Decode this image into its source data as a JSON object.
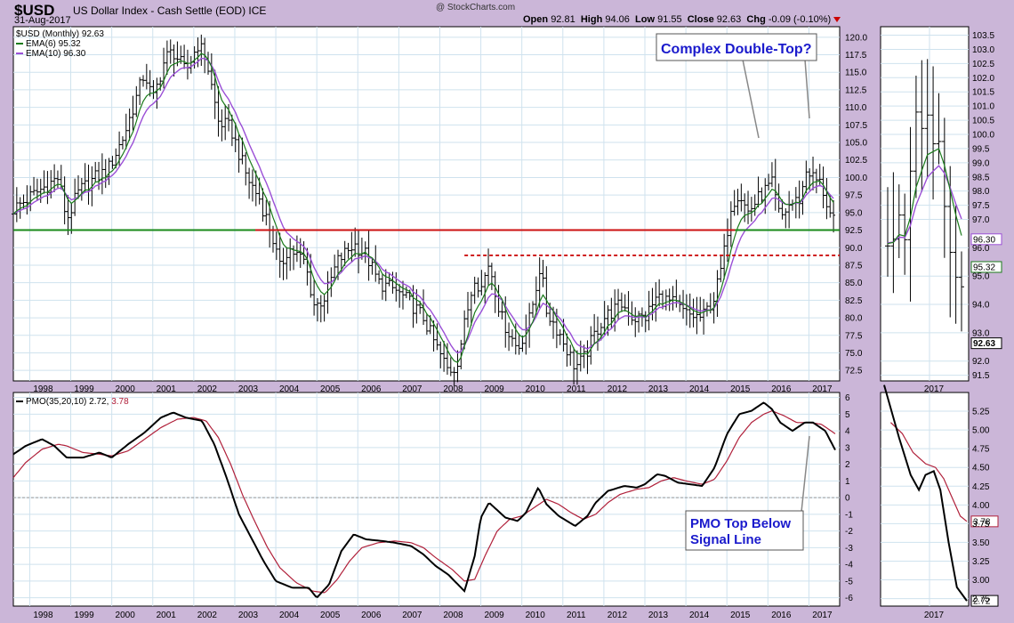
{
  "header": {
    "symbol": "$USD",
    "name": "US Dollar Index - Cash Settle (EOD)",
    "exchange": "ICE",
    "date": "31-Aug-2017",
    "logo": "@ StockCharts.com",
    "open_label": "Open",
    "open": "92.81",
    "high_label": "High",
    "high": "94.06",
    "low_label": "Low",
    "low": "91.55",
    "close_label": "Close",
    "close": "92.63",
    "chg_label": "Chg",
    "chg": "-0.09 (-0.10%)"
  },
  "colors": {
    "price": "#000000",
    "ema6": "#1a7a1a",
    "ema10": "#9b4fd6",
    "pmo": "#000000",
    "signal": "#b0203a",
    "support": "#1a8a1a",
    "resistance": "#cc1111",
    "annotation": "#1a1acc"
  },
  "chart_data": [
    {
      "type": "ohlc",
      "title": "$USD (Monthly) 92.63",
      "legend": [
        {
          "name": "EMA(6) 95.32"
        },
        {
          "name": "EMA(10) 96.30"
        }
      ],
      "x_ticks": [
        "1998",
        "1999",
        "2000",
        "2001",
        "2002",
        "2003",
        "2004",
        "2005",
        "2006",
        "2007",
        "2008",
        "2009",
        "2010",
        "2011",
        "2012",
        "2013",
        "2014",
        "2015",
        "2016",
        "2017"
      ],
      "y_ticks": [
        "72.5",
        "75.0",
        "77.5",
        "80.0",
        "82.5",
        "85.0",
        "87.5",
        "90.0",
        "92.5",
        "95.0",
        "97.5",
        "100.0",
        "102.5",
        "105.0",
        "107.5",
        "110.0",
        "112.5",
        "115.0",
        "117.5",
        "120.0"
      ],
      "ylim": [
        71.0,
        121.5
      ],
      "xlim": [
        1997.6,
        2017.75
      ],
      "close_anchors": [
        [
          1997.6,
          95.5
        ],
        [
          1998.2,
          98
        ],
        [
          1998.7,
          100
        ],
        [
          1998.9,
          94
        ],
        [
          1999.2,
          98
        ],
        [
          1999.6,
          100
        ],
        [
          1999.9,
          101
        ],
        [
          2000.3,
          106
        ],
        [
          2000.8,
          115
        ],
        [
          2001.0,
          111
        ],
        [
          2001.3,
          117
        ],
        [
          2001.5,
          118
        ],
        [
          2001.8,
          115
        ],
        [
          2002.1,
          119
        ],
        [
          2002.3,
          117
        ],
        [
          2002.6,
          108
        ],
        [
          2002.9,
          107
        ],
        [
          2003.3,
          100
        ],
        [
          2003.6,
          97
        ],
        [
          2003.9,
          92
        ],
        [
          2004.1,
          87
        ],
        [
          2004.3,
          90
        ],
        [
          2004.7,
          88
        ],
        [
          2004.95,
          81.5
        ],
        [
          2005.2,
          83
        ],
        [
          2005.5,
          88
        ],
        [
          2005.9,
          90.5
        ],
        [
          2006.2,
          89
        ],
        [
          2006.5,
          85
        ],
        [
          2006.9,
          84
        ],
        [
          2007.3,
          82
        ],
        [
          2007.6,
          80
        ],
        [
          2007.9,
          76
        ],
        [
          2008.2,
          72.5
        ],
        [
          2008.4,
          73
        ],
        [
          2008.6,
          79
        ],
        [
          2008.85,
          86
        ],
        [
          2009.0,
          84
        ],
        [
          2009.2,
          88
        ],
        [
          2009.5,
          80
        ],
        [
          2009.9,
          75.5
        ],
        [
          2010.2,
          80
        ],
        [
          2010.45,
          87.5
        ],
        [
          2010.6,
          81
        ],
        [
          2010.9,
          78
        ],
        [
          2011.3,
          73
        ],
        [
          2011.5,
          74
        ],
        [
          2011.8,
          78
        ],
        [
          2012.0,
          80
        ],
        [
          2012.45,
          82
        ],
        [
          2012.7,
          80
        ],
        [
          2013.0,
          80
        ],
        [
          2013.3,
          83
        ],
        [
          2013.7,
          82
        ],
        [
          2014.0,
          80.5
        ],
        [
          2014.4,
          80
        ],
        [
          2014.7,
          83
        ],
        [
          2014.9,
          88
        ],
        [
          2015.1,
          96
        ],
        [
          2015.3,
          98
        ],
        [
          2015.5,
          95
        ],
        [
          2015.9,
          98
        ],
        [
          2016.1,
          99
        ],
        [
          2016.3,
          94
        ],
        [
          2016.5,
          96
        ],
        [
          2016.8,
          97
        ],
        [
          2016.95,
          101.5
        ],
        [
          2017.1,
          100
        ],
        [
          2017.3,
          99
        ],
        [
          2017.5,
          95
        ],
        [
          2017.67,
          92.63
        ]
      ],
      "resistance_level": 92.5,
      "dashed_resistance_level": 88.9,
      "support_level": 92.5,
      "annotation": "Complex Double-Top?"
    },
    {
      "type": "ohlc",
      "title": "",
      "x_ticks": [
        "2017"
      ],
      "y_ticks": [
        "91.5",
        "92.0",
        "93.0",
        "94.0",
        "95.0",
        "96.0",
        "97.0",
        "97.5",
        "98.0",
        "98.5",
        "99.0",
        "99.5",
        "100.0",
        "100.5",
        "101.0",
        "101.5",
        "102.0",
        "102.5",
        "103.0",
        "103.5"
      ],
      "ylim": [
        91.3,
        103.8
      ],
      "price_tags": [
        "96.30",
        "95.32",
        "92.63"
      ]
    },
    {
      "type": "line",
      "title": "PMO(35,20,10) 2.72, 3.78",
      "pmo_label": "PMO(35,20,10)",
      "pmo_value": "2.72,",
      "signal_value": "3.78",
      "x_ticks": [
        "1998",
        "1999",
        "2000",
        "2001",
        "2002",
        "2003",
        "2004",
        "2005",
        "2006",
        "2007",
        "2008",
        "2009",
        "2010",
        "2011",
        "2012",
        "2013",
        "2014",
        "2015",
        "2016",
        "2017"
      ],
      "y_ticks": [
        "6",
        "5",
        "4",
        "3",
        "2",
        "1",
        "0",
        "-1",
        "-2",
        "-3",
        "-4",
        "-5",
        "-6"
      ],
      "ylim": [
        -6.5,
        6.3
      ],
      "pmo_anchors": [
        [
          1997.6,
          2.6
        ],
        [
          1997.9,
          3.1
        ],
        [
          1998.3,
          3.5
        ],
        [
          1998.6,
          3.1
        ],
        [
          1998.9,
          2.4
        ],
        [
          1999.3,
          2.4
        ],
        [
          1999.7,
          2.7
        ],
        [
          2000.0,
          2.4
        ],
        [
          2000.4,
          3.2
        ],
        [
          2000.8,
          3.9
        ],
        [
          2001.2,
          4.8
        ],
        [
          2001.5,
          5.1
        ],
        [
          2001.8,
          4.8
        ],
        [
          2002.2,
          4.6
        ],
        [
          2002.5,
          3.2
        ],
        [
          2002.8,
          1.2
        ],
        [
          2003.1,
          -1.0
        ],
        [
          2003.4,
          -2.4
        ],
        [
          2003.7,
          -3.8
        ],
        [
          2004.0,
          -5.0
        ],
        [
          2004.4,
          -5.4
        ],
        [
          2004.8,
          -5.4
        ],
        [
          2005.0,
          -6.0
        ],
        [
          2005.3,
          -5.2
        ],
        [
          2005.6,
          -3.2
        ],
        [
          2005.9,
          -2.2
        ],
        [
          2006.2,
          -2.5
        ],
        [
          2006.6,
          -2.6
        ],
        [
          2006.9,
          -2.7
        ],
        [
          2007.3,
          -2.9
        ],
        [
          2007.6,
          -3.4
        ],
        [
          2007.9,
          -4.1
        ],
        [
          2008.2,
          -4.6
        ],
        [
          2008.4,
          -5.1
        ],
        [
          2008.6,
          -5.6
        ],
        [
          2008.85,
          -3.5
        ],
        [
          2009.0,
          -1.2
        ],
        [
          2009.2,
          -0.3
        ],
        [
          2009.6,
          -1.2
        ],
        [
          2009.9,
          -1.4
        ],
        [
          2010.1,
          -0.9
        ],
        [
          2010.4,
          0.6
        ],
        [
          2010.6,
          -0.4
        ],
        [
          2010.9,
          -1.1
        ],
        [
          2011.3,
          -1.7
        ],
        [
          2011.6,
          -1.1
        ],
        [
          2011.8,
          -0.3
        ],
        [
          2012.1,
          0.4
        ],
        [
          2012.5,
          0.7
        ],
        [
          2012.8,
          0.6
        ],
        [
          2013.0,
          0.8
        ],
        [
          2013.3,
          1.4
        ],
        [
          2013.5,
          1.3
        ],
        [
          2013.8,
          0.9
        ],
        [
          2014.1,
          0.8
        ],
        [
          2014.4,
          0.7
        ],
        [
          2014.7,
          1.8
        ],
        [
          2015.0,
          3.8
        ],
        [
          2015.3,
          5.0
        ],
        [
          2015.6,
          5.2
        ],
        [
          2015.9,
          5.7
        ],
        [
          2016.1,
          5.3
        ],
        [
          2016.3,
          4.5
        ],
        [
          2016.6,
          4.0
        ],
        [
          2016.9,
          4.5
        ],
        [
          2017.1,
          4.5
        ],
        [
          2017.4,
          4.0
        ],
        [
          2017.67,
          2.72
        ]
      ],
      "signal_anchors": [
        [
          1997.6,
          1.2
        ],
        [
          1997.9,
          2.1
        ],
        [
          1998.3,
          2.9
        ],
        [
          1998.7,
          3.2
        ],
        [
          1998.9,
          3.1
        ],
        [
          1999.3,
          2.7
        ],
        [
          1999.7,
          2.6
        ],
        [
          2000.0,
          2.5
        ],
        [
          2000.4,
          2.8
        ],
        [
          2000.8,
          3.5
        ],
        [
          2001.2,
          4.2
        ],
        [
          2001.6,
          4.7
        ],
        [
          2002.0,
          4.8
        ],
        [
          2002.3,
          4.6
        ],
        [
          2002.6,
          3.6
        ],
        [
          2002.9,
          2.0
        ],
        [
          2003.2,
          0.1
        ],
        [
          2003.5,
          -1.5
        ],
        [
          2003.8,
          -3.0
        ],
        [
          2004.1,
          -4.2
        ],
        [
          2004.5,
          -5.1
        ],
        [
          2004.9,
          -5.6
        ],
        [
          2005.2,
          -5.7
        ],
        [
          2005.5,
          -4.9
        ],
        [
          2005.8,
          -3.8
        ],
        [
          2006.1,
          -3.0
        ],
        [
          2006.5,
          -2.7
        ],
        [
          2006.9,
          -2.6
        ],
        [
          2007.3,
          -2.7
        ],
        [
          2007.6,
          -3.0
        ],
        [
          2007.9,
          -3.6
        ],
        [
          2008.3,
          -4.3
        ],
        [
          2008.6,
          -5.0
        ],
        [
          2008.85,
          -4.9
        ],
        [
          2009.1,
          -3.5
        ],
        [
          2009.4,
          -2.0
        ],
        [
          2009.7,
          -1.3
        ],
        [
          2010.0,
          -1.1
        ],
        [
          2010.3,
          -0.6
        ],
        [
          2010.6,
          -0.1
        ],
        [
          2010.9,
          -0.4
        ],
        [
          2011.2,
          -0.9
        ],
        [
          2011.5,
          -1.3
        ],
        [
          2011.8,
          -1.0
        ],
        [
          2012.1,
          -0.3
        ],
        [
          2012.4,
          0.2
        ],
        [
          2012.8,
          0.5
        ],
        [
          2013.1,
          0.6
        ],
        [
          2013.4,
          1.0
        ],
        [
          2013.7,
          1.2
        ],
        [
          2014.0,
          1.0
        ],
        [
          2014.4,
          0.8
        ],
        [
          2014.7,
          1.1
        ],
        [
          2015.0,
          2.2
        ],
        [
          2015.3,
          3.6
        ],
        [
          2015.6,
          4.5
        ],
        [
          2015.9,
          5.0
        ],
        [
          2016.1,
          5.2
        ],
        [
          2016.4,
          4.9
        ],
        [
          2016.7,
          4.5
        ],
        [
          2017.0,
          4.5
        ],
        [
          2017.3,
          4.4
        ],
        [
          2017.67,
          3.78
        ]
      ],
      "annotation_line1": "PMO Top Below",
      "annotation_line2": "Signal Line"
    },
    {
      "type": "line",
      "title": "",
      "x_ticks": [
        "2017"
      ],
      "y_ticks": [
        "5.25",
        "5.00",
        "4.75",
        "4.50",
        "4.25",
        "4.00",
        "3.75",
        "3.50",
        "3.25",
        "3.00",
        "2.75"
      ],
      "ylim": [
        2.65,
        5.5
      ],
      "value_tags": [
        "3.78",
        "2.72"
      ]
    }
  ]
}
